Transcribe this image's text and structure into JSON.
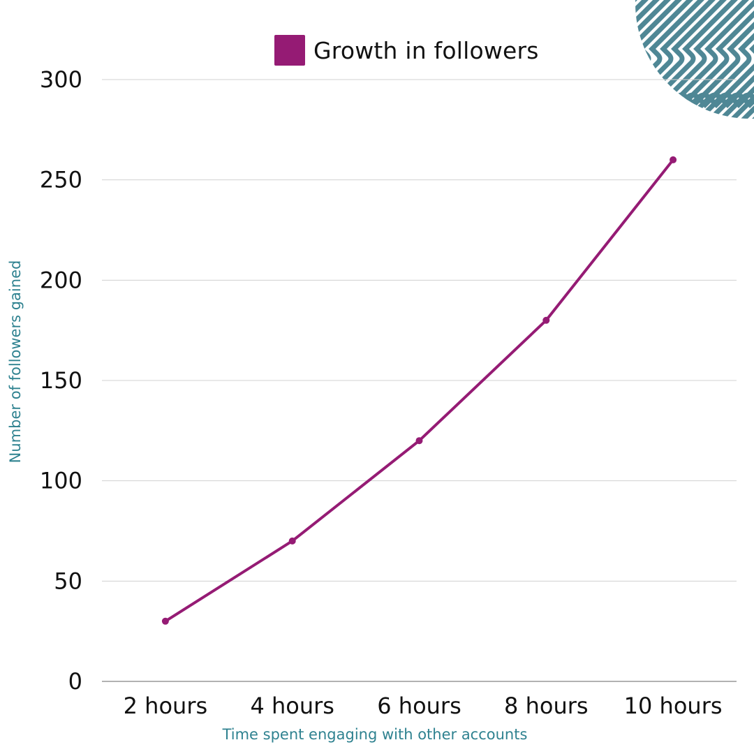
{
  "chart_data": {
    "type": "line",
    "title": "",
    "categories": [
      "2 hours",
      "4 hours",
      "6 hours",
      "8 hours",
      "10 hours"
    ],
    "series": [
      {
        "name": "Growth in followers",
        "values": [
          30,
          70,
          120,
          180,
          260
        ],
        "color": "#951b74"
      }
    ],
    "xlabel": "Time spent engaging with other accounts",
    "ylabel": "Number of followers gained",
    "ylim": [
      0,
      300
    ],
    "yticks": [
      0,
      50,
      100,
      150,
      200,
      250,
      300
    ],
    "grid": true,
    "legend_position": "top"
  },
  "colors": {
    "series": "#951b74",
    "axis_label": "#2f8290",
    "grid": "#d0d0d0",
    "decoration": "#4f8795"
  },
  "legend": {
    "label": "Growth in followers"
  },
  "axes": {
    "xlabel": "Time spent engaging with other accounts",
    "ylabel": "Number of followers gained"
  }
}
